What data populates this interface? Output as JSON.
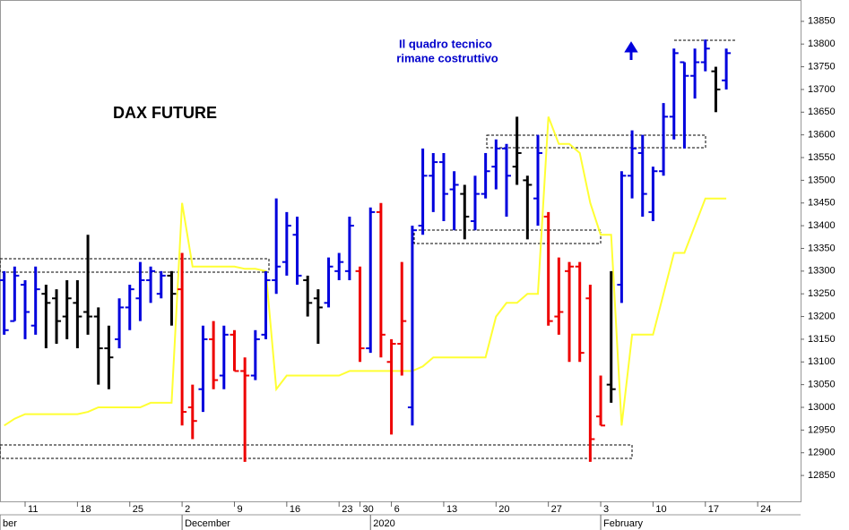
{
  "chart_data": {
    "type": "ohlc",
    "title": "DAX FUTURE",
    "annotation": [
      "Il quadro tecnico",
      "rimane costruttivo"
    ],
    "annotation_color": "#0000cc",
    "open": [
      13280,
      13190,
      13270,
      13180,
      13250,
      13240,
      13200,
      13230,
      13210,
      13200,
      13130,
      13150,
      13220,
      13240,
      13280,
      13250,
      13290,
      13260,
      13000,
      13040,
      13150,
      13070,
      13160,
      13080,
      13070,
      13160,
      13280,
      13320,
      13380,
      13280,
      13240,
      13230,
      13300,
      13300,
      13300,
      13130,
      13430,
      13100,
      13140,
      13000,
      13400,
      13510,
      13540,
      13480,
      13470,
      13410,
      13470,
      13530,
      13570,
      13530,
      13500,
      13460,
      13420,
      13200,
      13300,
      13310,
      13240,
      12980,
      13050,
      13270,
      13510,
      13560,
      13430,
      13520,
      13640,
      13760,
      13730,
      13760,
      13740,
      13720
    ],
    "high": [
      13300,
      13310,
      13280,
      13310,
      13270,
      13260,
      13280,
      13280,
      13380,
      13220,
      13180,
      13240,
      13270,
      13320,
      13310,
      13300,
      13300,
      13340,
      13050,
      13180,
      13190,
      13180,
      13170,
      13110,
      13170,
      13300,
      13460,
      13430,
      13420,
      13290,
      13260,
      13330,
      13340,
      13420,
      13310,
      13440,
      13450,
      13150,
      13320,
      13400,
      13570,
      13560,
      13560,
      13520,
      13490,
      13510,
      13560,
      13590,
      13580,
      13640,
      13510,
      13600,
      13430,
      13330,
      13320,
      13320,
      13270,
      13070,
      13300,
      13520,
      13610,
      13600,
      13530,
      13670,
      13790,
      13760,
      13790,
      13810,
      13750,
      13790
    ],
    "low": [
      13160,
      13190,
      13150,
      13160,
      13130,
      13140,
      13150,
      13130,
      13160,
      13050,
      13040,
      13130,
      13170,
      13190,
      13230,
      13240,
      13180,
      12960,
      12930,
      12990,
      13040,
      13040,
      13080,
      12880,
      13060,
      13150,
      13250,
      13290,
      13270,
      13200,
      13140,
      13220,
      13280,
      13280,
      13100,
      13120,
      13110,
      12940,
      13070,
      12960,
      13380,
      13430,
      13410,
      13390,
      13370,
      13390,
      13460,
      13480,
      13420,
      13490,
      13370,
      13400,
      13180,
      13160,
      13100,
      13100,
      12880,
      12960,
      13010,
      13230,
      13460,
      13420,
      13410,
      13510,
      13590,
      13570,
      13680,
      13740,
      13650,
      13700
    ],
    "close": [
      13170,
      13290,
      13210,
      13260,
      13230,
      13190,
      13240,
      13200,
      13200,
      13130,
      13110,
      13220,
      13260,
      13280,
      13300,
      13290,
      13250,
      12990,
      12970,
      13150,
      13060,
      13160,
      13080,
      13070,
      13150,
      13280,
      13310,
      13400,
      13290,
      13230,
      13220,
      13310,
      13320,
      13400,
      13130,
      13430,
      13160,
      13140,
      13190,
      13390,
      13510,
      13540,
      13470,
      13490,
      13420,
      13470,
      13520,
      13570,
      13510,
      13560,
      13490,
      13560,
      13190,
      13210,
      13310,
      13120,
      12930,
      12960,
      13040,
      13510,
      13570,
      13470,
      13520,
      13640,
      13780,
      13730,
      13760,
      13790,
      13700,
      13780
    ],
    "bar_colors": [
      "#0000dd",
      "#0000dd",
      "#0000dd",
      "#0000dd",
      "#000000",
      "#000000",
      "#000000",
      "#000000",
      "#000000",
      "#000000",
      "#000000",
      "#0000dd",
      "#0000dd",
      "#0000dd",
      "#0000dd",
      "#0000dd",
      "#000000",
      "#ee0000",
      "#ee0000",
      "#0000dd",
      "#ee0000",
      "#0000dd",
      "#ee0000",
      "#ee0000",
      "#0000dd",
      "#0000dd",
      "#0000dd",
      "#0000dd",
      "#0000dd",
      "#000000",
      "#000000",
      "#0000dd",
      "#0000dd",
      "#0000dd",
      "#ee0000",
      "#0000dd",
      "#ee0000",
      "#ee0000",
      "#ee0000",
      "#0000dd",
      "#0000dd",
      "#0000dd",
      "#0000dd",
      "#0000dd",
      "#000000",
      "#0000dd",
      "#0000dd",
      "#0000dd",
      "#0000dd",
      "#000000",
      "#000000",
      "#0000dd",
      "#ee0000",
      "#ee0000",
      "#ee0000",
      "#ee0000",
      "#ee0000",
      "#ee0000",
      "#000000",
      "#0000dd",
      "#0000dd",
      "#0000dd",
      "#0000dd",
      "#0000dd",
      "#0000dd",
      "#0000dd",
      "#0000dd",
      "#0000dd",
      "#000000",
      "#0000dd"
    ],
    "line": {
      "color": "#ffff33",
      "values": [
        12960,
        12975,
        12985,
        12985,
        12985,
        12985,
        12985,
        12985,
        12990,
        13000,
        13000,
        13000,
        13000,
        13000,
        13010,
        13010,
        13010,
        13450,
        13310,
        13310,
        13310,
        13310,
        13310,
        13305,
        13305,
        13300,
        13040,
        13070,
        13070,
        13070,
        13070,
        13070,
        13070,
        13080,
        13080,
        13080,
        13080,
        13080,
        13080,
        13080,
        13090,
        13110,
        13110,
        13110,
        13110,
        13110,
        13110,
        13200,
        13230,
        13230,
        13250,
        13250,
        13640,
        13580,
        13580,
        13560,
        13450,
        13380,
        13380,
        12960,
        13160,
        13160,
        13160,
        13250,
        13340,
        13340,
        13400,
        13460,
        13460,
        13460
      ]
    },
    "xlim": [
      -0.4,
      76.1
    ],
    "ylim": [
      12793,
      13897
    ],
    "yticks": [
      12850,
      12900,
      12950,
      13000,
      13050,
      13100,
      13150,
      13200,
      13250,
      13300,
      13350,
      13400,
      13450,
      13500,
      13550,
      13600,
      13650,
      13700,
      13750,
      13800,
      13850
    ],
    "xticks": [
      {
        "value": 2,
        "label": "11"
      },
      {
        "value": 7,
        "label": "18"
      },
      {
        "value": 12,
        "label": "25"
      },
      {
        "value": 17,
        "label": "2"
      },
      {
        "value": 22,
        "label": "9"
      },
      {
        "value": 27,
        "label": "16"
      },
      {
        "value": 32,
        "label": "23"
      },
      {
        "value": 34,
        "label": "30"
      },
      {
        "value": 37,
        "label": "6"
      },
      {
        "value": 42,
        "label": "13"
      },
      {
        "value": 47,
        "label": "20"
      },
      {
        "value": 52,
        "label": "27"
      },
      {
        "value": 57,
        "label": "3"
      },
      {
        "value": 62,
        "label": "10"
      },
      {
        "value": 67,
        "label": "17"
      },
      {
        "value": 72,
        "label": "24"
      }
    ],
    "month_labels": [
      {
        "value": -0.4,
        "label": "ber"
      },
      {
        "value": 17,
        "label": "December"
      },
      {
        "value": 35,
        "label": "2020"
      },
      {
        "value": 57,
        "label": "February"
      }
    ]
  }
}
